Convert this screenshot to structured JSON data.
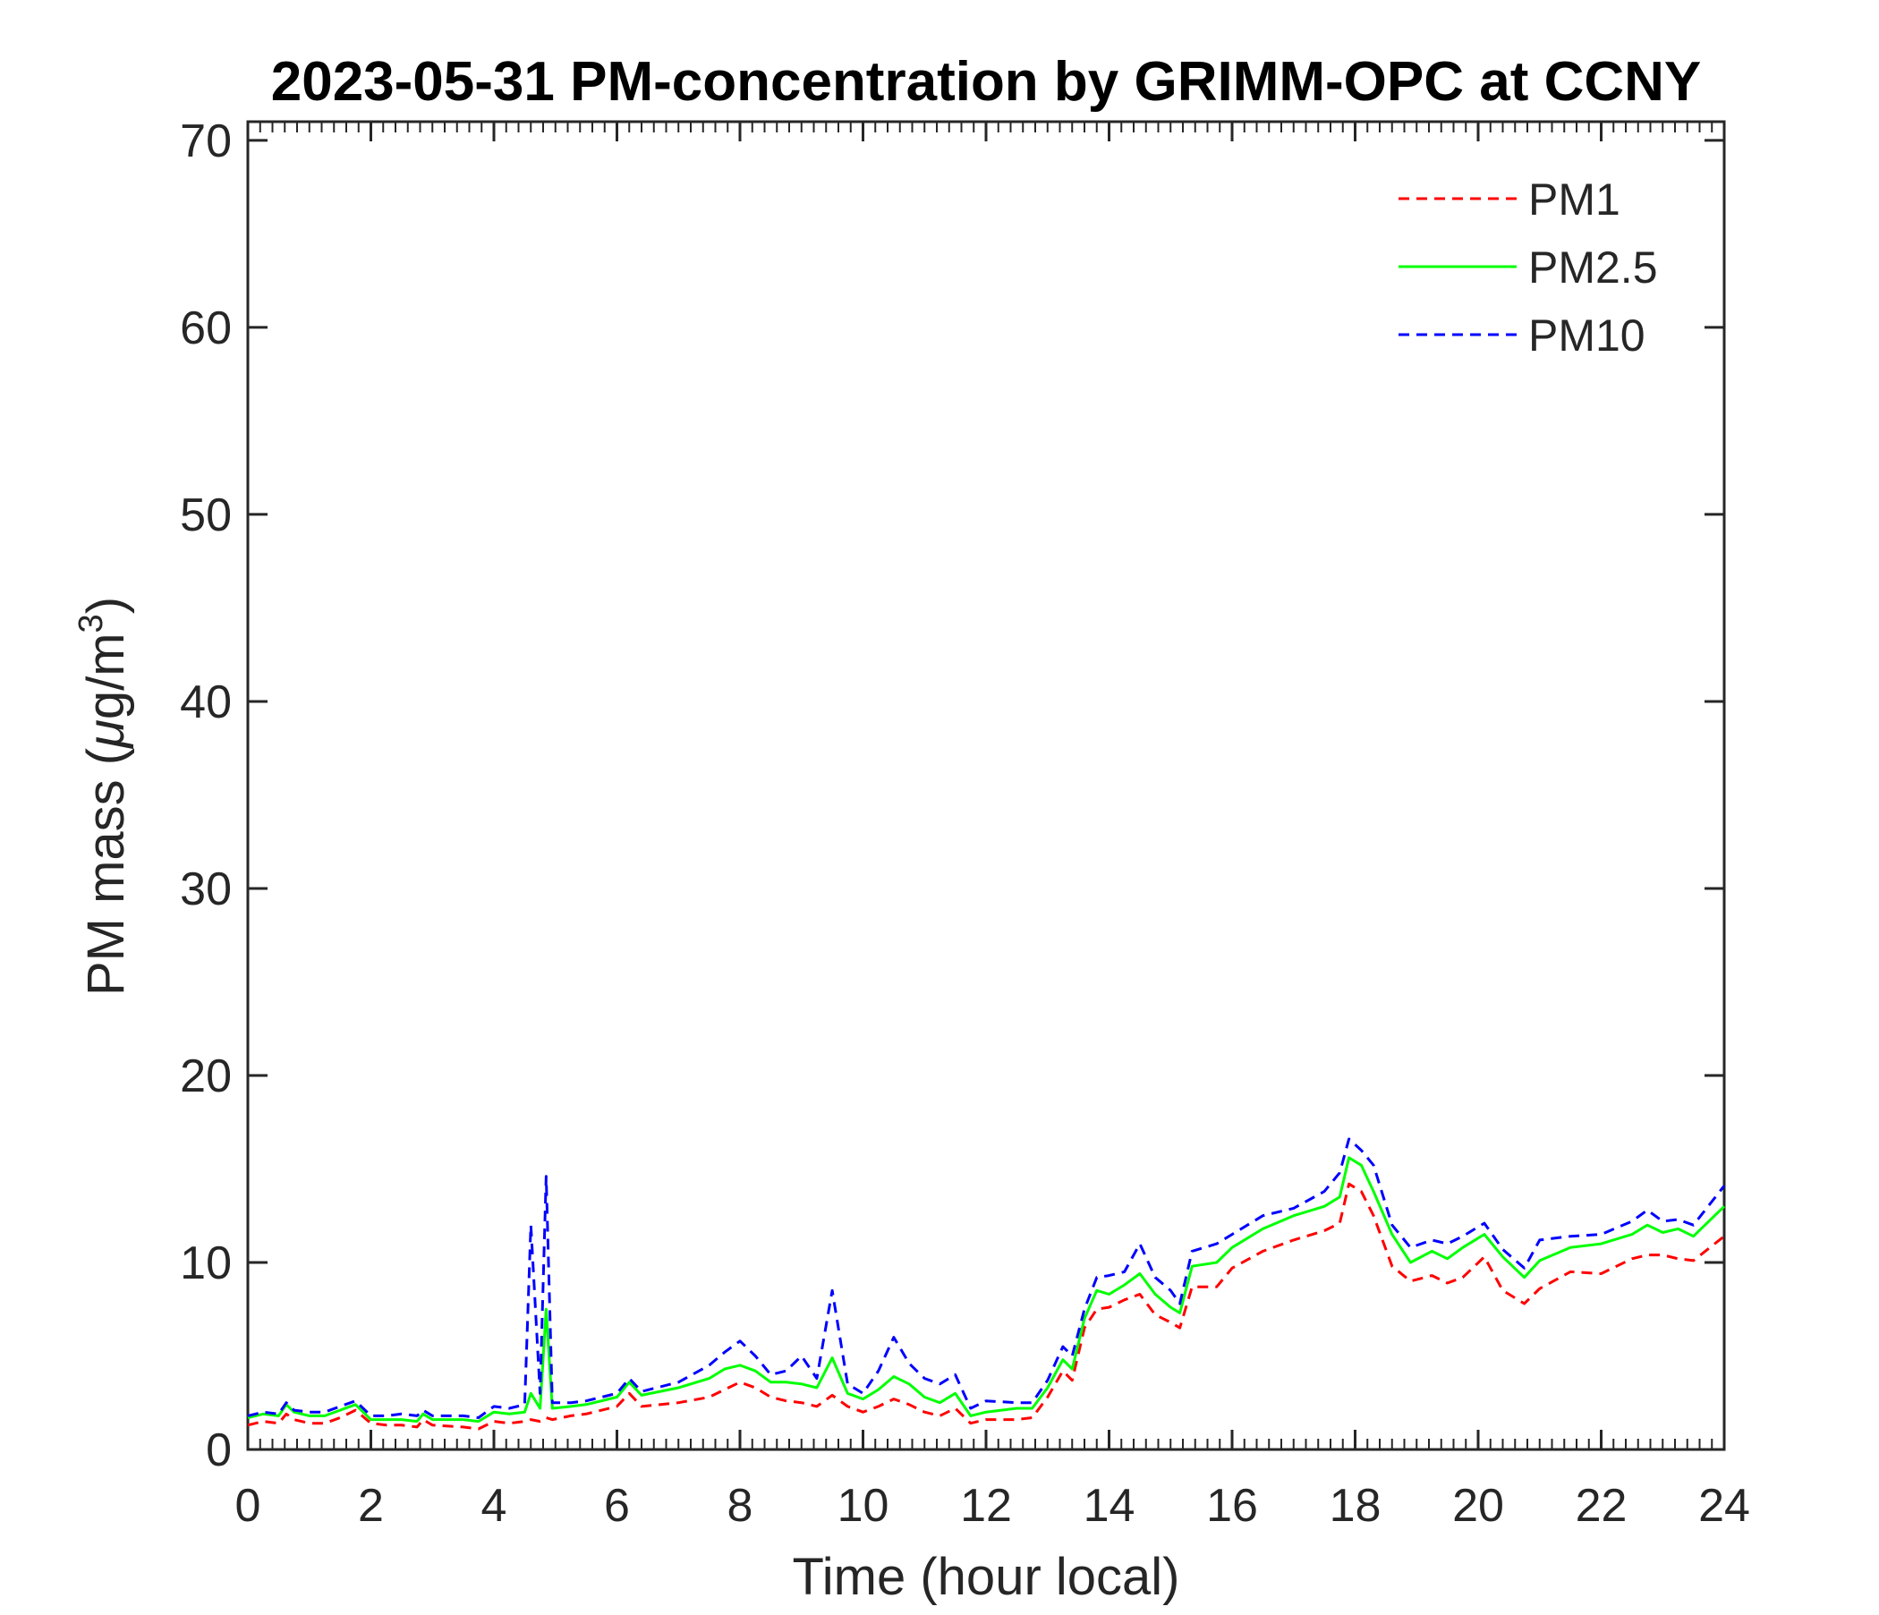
{
  "chart_data": {
    "type": "line",
    "title": "2023-05-31 PM-concentration by GRIMM-OPC at CCNY",
    "xlabel": "Time (hour local)",
    "ylabel_prefix": "PM mass (",
    "ylabel_mu": "μ",
    "ylabel_unit": "g/m",
    "ylabel_sup": "3",
    "ylabel_suffix": ")",
    "xlim": [
      0,
      24
    ],
    "ylim": [
      0,
      71
    ],
    "xticks": [
      "0",
      "2",
      "4",
      "6",
      "8",
      "10",
      "12",
      "14",
      "16",
      "18",
      "20",
      "22",
      "24"
    ],
    "yticks": [
      "0",
      "10",
      "20",
      "30",
      "40",
      "50",
      "60",
      "70"
    ],
    "grid": false,
    "legend_position": "top-right",
    "x": [
      0,
      0.25,
      0.5,
      0.625,
      0.75,
      1,
      1.25,
      1.5,
      1.75,
      2,
      2.25,
      2.5,
      2.75,
      2.85,
      3,
      3.5,
      3.75,
      4,
      4.25,
      4.5,
      4.6,
      4.75,
      4.85,
      4.95,
      5.25,
      5.5,
      6,
      6.2,
      6.4,
      7,
      7.5,
      7.75,
      8,
      8.25,
      8.5,
      8.75,
      9,
      9.25,
      9.5,
      9.75,
      10,
      10.25,
      10.5,
      10.75,
      11,
      11.25,
      11.5,
      11.75,
      12,
      12.5,
      12.75,
      13,
      13.25,
      13.4,
      13.6,
      13.8,
      14,
      14.25,
      14.5,
      14.75,
      15,
      15.15,
      15.35,
      15.75,
      16,
      16.5,
      17,
      17.5,
      17.75,
      17.9,
      18.1,
      18.3,
      18.6,
      18.9,
      19.25,
      19.5,
      19.75,
      20.1,
      20.4,
      20.75,
      21,
      21.5,
      22,
      22.5,
      22.75,
      23,
      23.25,
      23.5,
      24
    ],
    "series": [
      {
        "name": "PM1",
        "color": "#ff0000",
        "style": "dashed",
        "values": [
          1.3,
          1.5,
          1.4,
          1.9,
          1.6,
          1.4,
          1.4,
          1.7,
          2.1,
          1.4,
          1.3,
          1.3,
          1.2,
          1.6,
          1.3,
          1.2,
          1.1,
          1.5,
          1.4,
          1.5,
          1.6,
          1.5,
          1.7,
          1.6,
          1.8,
          1.9,
          2.3,
          3.0,
          2.3,
          2.5,
          2.8,
          3.2,
          3.6,
          3.3,
          2.8,
          2.6,
          2.5,
          2.3,
          2.9,
          2.3,
          2.0,
          2.3,
          2.7,
          2.4,
          2.0,
          1.8,
          2.2,
          1.4,
          1.6,
          1.6,
          1.7,
          2.8,
          4.2,
          3.7,
          6.5,
          7.5,
          7.6,
          8.0,
          8.3,
          7.2,
          6.8,
          6.5,
          8.7,
          8.7,
          9.7,
          10.6,
          11.2,
          11.7,
          12.1,
          14.2,
          13.8,
          12.5,
          9.8,
          9.0,
          9.3,
          8.9,
          9.2,
          10.3,
          8.5,
          7.8,
          8.6,
          9.5,
          9.4,
          10.2,
          10.4,
          10.4,
          10.2,
          10.1,
          11.4
        ]
      },
      {
        "name": "PM2.5",
        "color": "#00ff00",
        "style": "solid",
        "values": [
          1.7,
          1.9,
          1.8,
          2.4,
          2.0,
          1.8,
          1.8,
          2.1,
          2.4,
          1.6,
          1.6,
          1.6,
          1.5,
          1.9,
          1.6,
          1.6,
          1.5,
          2.0,
          1.9,
          2.0,
          3.0,
          2.2,
          7.5,
          2.2,
          2.3,
          2.4,
          2.8,
          3.6,
          2.9,
          3.3,
          3.8,
          4.3,
          4.5,
          4.2,
          3.6,
          3.6,
          3.5,
          3.3,
          4.9,
          3.0,
          2.7,
          3.2,
          3.9,
          3.5,
          2.8,
          2.5,
          3.0,
          1.8,
          2.0,
          2.2,
          2.2,
          3.3,
          4.8,
          4.3,
          7.0,
          8.5,
          8.3,
          8.8,
          9.4,
          8.3,
          7.6,
          7.3,
          9.8,
          10.0,
          10.8,
          11.8,
          12.5,
          13.0,
          13.5,
          15.6,
          15.2,
          13.8,
          11.5,
          10.0,
          10.6,
          10.2,
          10.8,
          11.5,
          10.3,
          9.2,
          10.1,
          10.8,
          11.0,
          11.5,
          12.0,
          11.6,
          11.8,
          11.4,
          13.0
        ]
      },
      {
        "name": "PM10",
        "color": "#0000ff",
        "style": "dashed",
        "values": [
          1.8,
          2.0,
          1.9,
          2.5,
          2.1,
          2.0,
          2.0,
          2.3,
          2.6,
          1.8,
          1.8,
          1.9,
          1.8,
          2.1,
          1.8,
          1.8,
          1.7,
          2.3,
          2.2,
          2.4,
          12.0,
          3.0,
          14.6,
          2.5,
          2.5,
          2.6,
          3.0,
          3.8,
          3.1,
          3.6,
          4.5,
          5.2,
          5.8,
          5.0,
          4.0,
          4.2,
          5.0,
          3.8,
          8.5,
          3.5,
          3.0,
          4.2,
          6.0,
          4.6,
          3.8,
          3.5,
          4.0,
          2.2,
          2.6,
          2.5,
          2.5,
          3.7,
          5.5,
          5.0,
          7.5,
          9.2,
          9.3,
          9.5,
          11.0,
          9.2,
          8.5,
          7.8,
          10.6,
          11.0,
          11.5,
          12.5,
          12.9,
          13.8,
          14.8,
          16.6,
          16.0,
          15.2,
          12.0,
          10.8,
          11.2,
          11.0,
          11.4,
          12.1,
          10.7,
          9.7,
          11.2,
          11.4,
          11.5,
          12.2,
          12.8,
          12.2,
          12.3,
          12.0,
          14.1
        ]
      }
    ]
  }
}
